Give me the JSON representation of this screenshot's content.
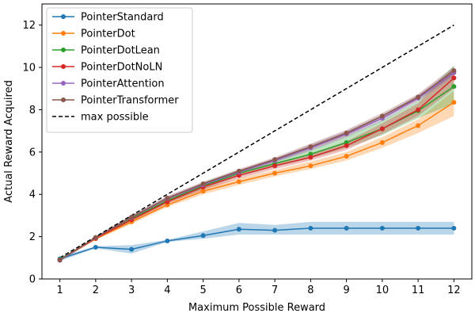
{
  "chart_data": {
    "type": "line",
    "title": "",
    "xlabel": "Maximum Possible Reward",
    "ylabel": "Actual Reward Acquired",
    "xlim": [
      0.5,
      12.5
    ],
    "ylim": [
      0,
      13
    ],
    "x": [
      1,
      2,
      3,
      4,
      5,
      6,
      7,
      8,
      9,
      10,
      11,
      12
    ],
    "x_ticks": [
      "1",
      "2",
      "3",
      "4",
      "5",
      "6",
      "7",
      "8",
      "9",
      "10",
      "11",
      "12"
    ],
    "y_ticks": [
      "0",
      "2",
      "4",
      "6",
      "8",
      "10",
      "12"
    ],
    "grid": false,
    "legend_position": "top-left",
    "series": [
      {
        "name": "PointerStandard",
        "color": "#1f77b4",
        "values": [
          0.95,
          1.5,
          1.4,
          1.8,
          2.05,
          2.35,
          2.3,
          2.4,
          2.4,
          2.4,
          2.4,
          2.4
        ],
        "band_lower": [
          0.85,
          1.45,
          1.2,
          1.75,
          1.9,
          2.1,
          2.1,
          2.1,
          2.1,
          2.1,
          2.1,
          2.1
        ],
        "band_upper": [
          1.05,
          1.55,
          1.6,
          1.85,
          2.25,
          2.65,
          2.55,
          2.7,
          2.7,
          2.7,
          2.7,
          2.7
        ]
      },
      {
        "name": "PointerDot",
        "color": "#ff7f0e",
        "values": [
          0.9,
          1.9,
          2.7,
          3.5,
          4.15,
          4.6,
          5.0,
          5.35,
          5.8,
          6.45,
          7.25,
          8.35
        ],
        "band_lower": [
          0.85,
          1.85,
          2.6,
          3.4,
          4.0,
          4.45,
          4.85,
          5.2,
          5.6,
          6.2,
          6.9,
          7.7
        ],
        "band_upper": [
          0.95,
          1.95,
          2.8,
          3.6,
          4.3,
          4.75,
          5.15,
          5.55,
          6.0,
          6.7,
          7.55,
          8.9
        ]
      },
      {
        "name": "PointerDotLean",
        "color": "#2ca02c",
        "values": [
          0.92,
          1.93,
          2.85,
          3.7,
          4.4,
          5.0,
          5.45,
          5.9,
          6.45,
          7.1,
          7.95,
          9.1
        ],
        "band_lower": [
          0.87,
          1.88,
          2.75,
          3.6,
          4.25,
          4.85,
          5.3,
          5.7,
          6.2,
          6.8,
          7.6,
          8.3
        ],
        "band_upper": [
          0.97,
          1.98,
          2.95,
          3.8,
          4.55,
          5.15,
          5.6,
          6.1,
          6.75,
          7.5,
          8.4,
          10.1
        ]
      },
      {
        "name": "PointerDotNoLN",
        "color": "#d62728",
        "values": [
          0.9,
          1.92,
          2.8,
          3.65,
          4.35,
          4.9,
          5.35,
          5.75,
          6.3,
          7.1,
          8.0,
          9.5
        ],
        "band_lower": [
          0.85,
          1.87,
          2.7,
          3.55,
          4.2,
          4.75,
          5.2,
          5.6,
          6.1,
          6.85,
          7.7,
          9.0
        ],
        "band_upper": [
          0.95,
          1.97,
          2.9,
          3.75,
          4.5,
          5.05,
          5.5,
          5.9,
          6.5,
          7.35,
          8.3,
          10.0
        ]
      },
      {
        "name": "PointerAttention",
        "color": "#9467bd",
        "values": [
          0.88,
          1.95,
          2.9,
          3.8,
          4.45,
          5.05,
          5.6,
          6.2,
          6.85,
          7.6,
          8.55,
          9.75
        ],
        "band_lower": [
          0.83,
          1.9,
          2.8,
          3.7,
          4.35,
          4.95,
          5.5,
          6.05,
          6.7,
          7.45,
          8.4,
          9.55
        ],
        "band_upper": [
          0.93,
          2.0,
          3.0,
          3.9,
          4.55,
          5.15,
          5.7,
          6.35,
          7.0,
          7.75,
          8.7,
          9.95
        ]
      },
      {
        "name": "PointerTransformer",
        "color": "#8c564b",
        "values": [
          0.9,
          1.96,
          2.92,
          3.82,
          4.5,
          5.1,
          5.65,
          6.25,
          6.9,
          7.7,
          8.6,
          9.85
        ],
        "band_lower": [
          0.85,
          1.91,
          2.82,
          3.72,
          4.4,
          5.0,
          5.55,
          6.1,
          6.75,
          7.55,
          8.45,
          9.65
        ],
        "band_upper": [
          0.95,
          2.01,
          3.02,
          3.92,
          4.6,
          5.2,
          5.75,
          6.4,
          7.05,
          7.85,
          8.75,
          10.05
        ]
      },
      {
        "name": "max possible",
        "color": "#000000",
        "dashed": true,
        "values": [
          1,
          2,
          3,
          4,
          5,
          6,
          7,
          8,
          9,
          10,
          11,
          12
        ]
      }
    ]
  }
}
